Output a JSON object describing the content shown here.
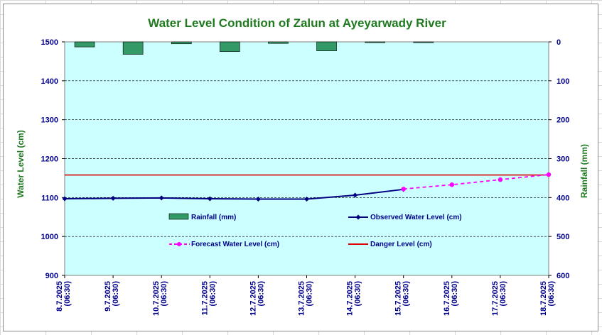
{
  "colors": {
    "plot_background": "#ccffff",
    "title": "#1f7a1f",
    "axis_text": "#00008b",
    "rainfall": "#339966",
    "observed": "#000080",
    "forecast": "#ff00ff",
    "danger": "#dd0000"
  },
  "chart_data": {
    "type": "line",
    "title": "Water Level Condition of Zalun at Ayeyarwady River",
    "ylabel_left": "Water Level (cm)",
    "ylabel_right": "Rainfall (mm)",
    "ylim_left": [
      900,
      1500
    ],
    "yticks_left": [
      900,
      1000,
      1100,
      1200,
      1300,
      1400,
      1500
    ],
    "ylim_right": [
      0,
      600
    ],
    "right_axis_inverted": true,
    "yticks_right": [
      0,
      100,
      200,
      300,
      400,
      500,
      600
    ],
    "grid": "horizontal dashed",
    "categories": [
      "8.7.2025 (06:30)",
      "9.7.2025 (06:30)",
      "10.7.2025 (06:30)",
      "11.7.2025 (06:30)",
      "12.7.2025 (06:30)",
      "13.7.2025 (06:30)",
      "14.7.2025 (06:30)",
      "15.7.2025 (06:30)",
      "16.7.2025 (06:30)",
      "17.7.2025 (06:30)",
      "18.7.2025 (06:30)"
    ],
    "x_tick_lines": [
      [
        "8.7.2025",
        "(06:30)"
      ],
      [
        "9.7.2025",
        "(06:30)"
      ],
      [
        "10.7.2025",
        "(06:30)"
      ],
      [
        "11.7.2025",
        "(06:30)"
      ],
      [
        "12.7.2025",
        "(06:30)"
      ],
      [
        "13.7.2025",
        "(06:30)"
      ],
      [
        "14.7.2025",
        "(06:30)"
      ],
      [
        "15.7.2025",
        "(06:30)"
      ],
      [
        "16.7.2025",
        "(06:30)"
      ],
      [
        "17.7.2025",
        "(06:30)"
      ],
      [
        "18.7.2025",
        "(06:30)"
      ]
    ],
    "series": [
      {
        "name": "Rainfall (mm)",
        "kind": "bar",
        "axis": "right",
        "values": [
          13,
          32,
          5,
          25,
          4,
          23,
          2,
          2,
          null,
          null,
          null
        ]
      },
      {
        "name": "Observed Water Level (cm)",
        "kind": "line",
        "axis": "left",
        "marker": "diamond",
        "values": [
          1097,
          1098,
          1099,
          1097,
          1096,
          1096,
          1106,
          1121,
          null,
          null,
          null
        ]
      },
      {
        "name": "Forecast Water Level (cm)",
        "kind": "line",
        "axis": "left",
        "marker": "circle",
        "style": "dashed",
        "values": [
          null,
          null,
          null,
          null,
          null,
          null,
          null,
          1122,
          1133,
          1146,
          1159
        ]
      },
      {
        "name": "Danger Level (cm)",
        "kind": "hline",
        "axis": "left",
        "value": 1158
      }
    ],
    "legend_position": "inside plot, lower middle"
  }
}
